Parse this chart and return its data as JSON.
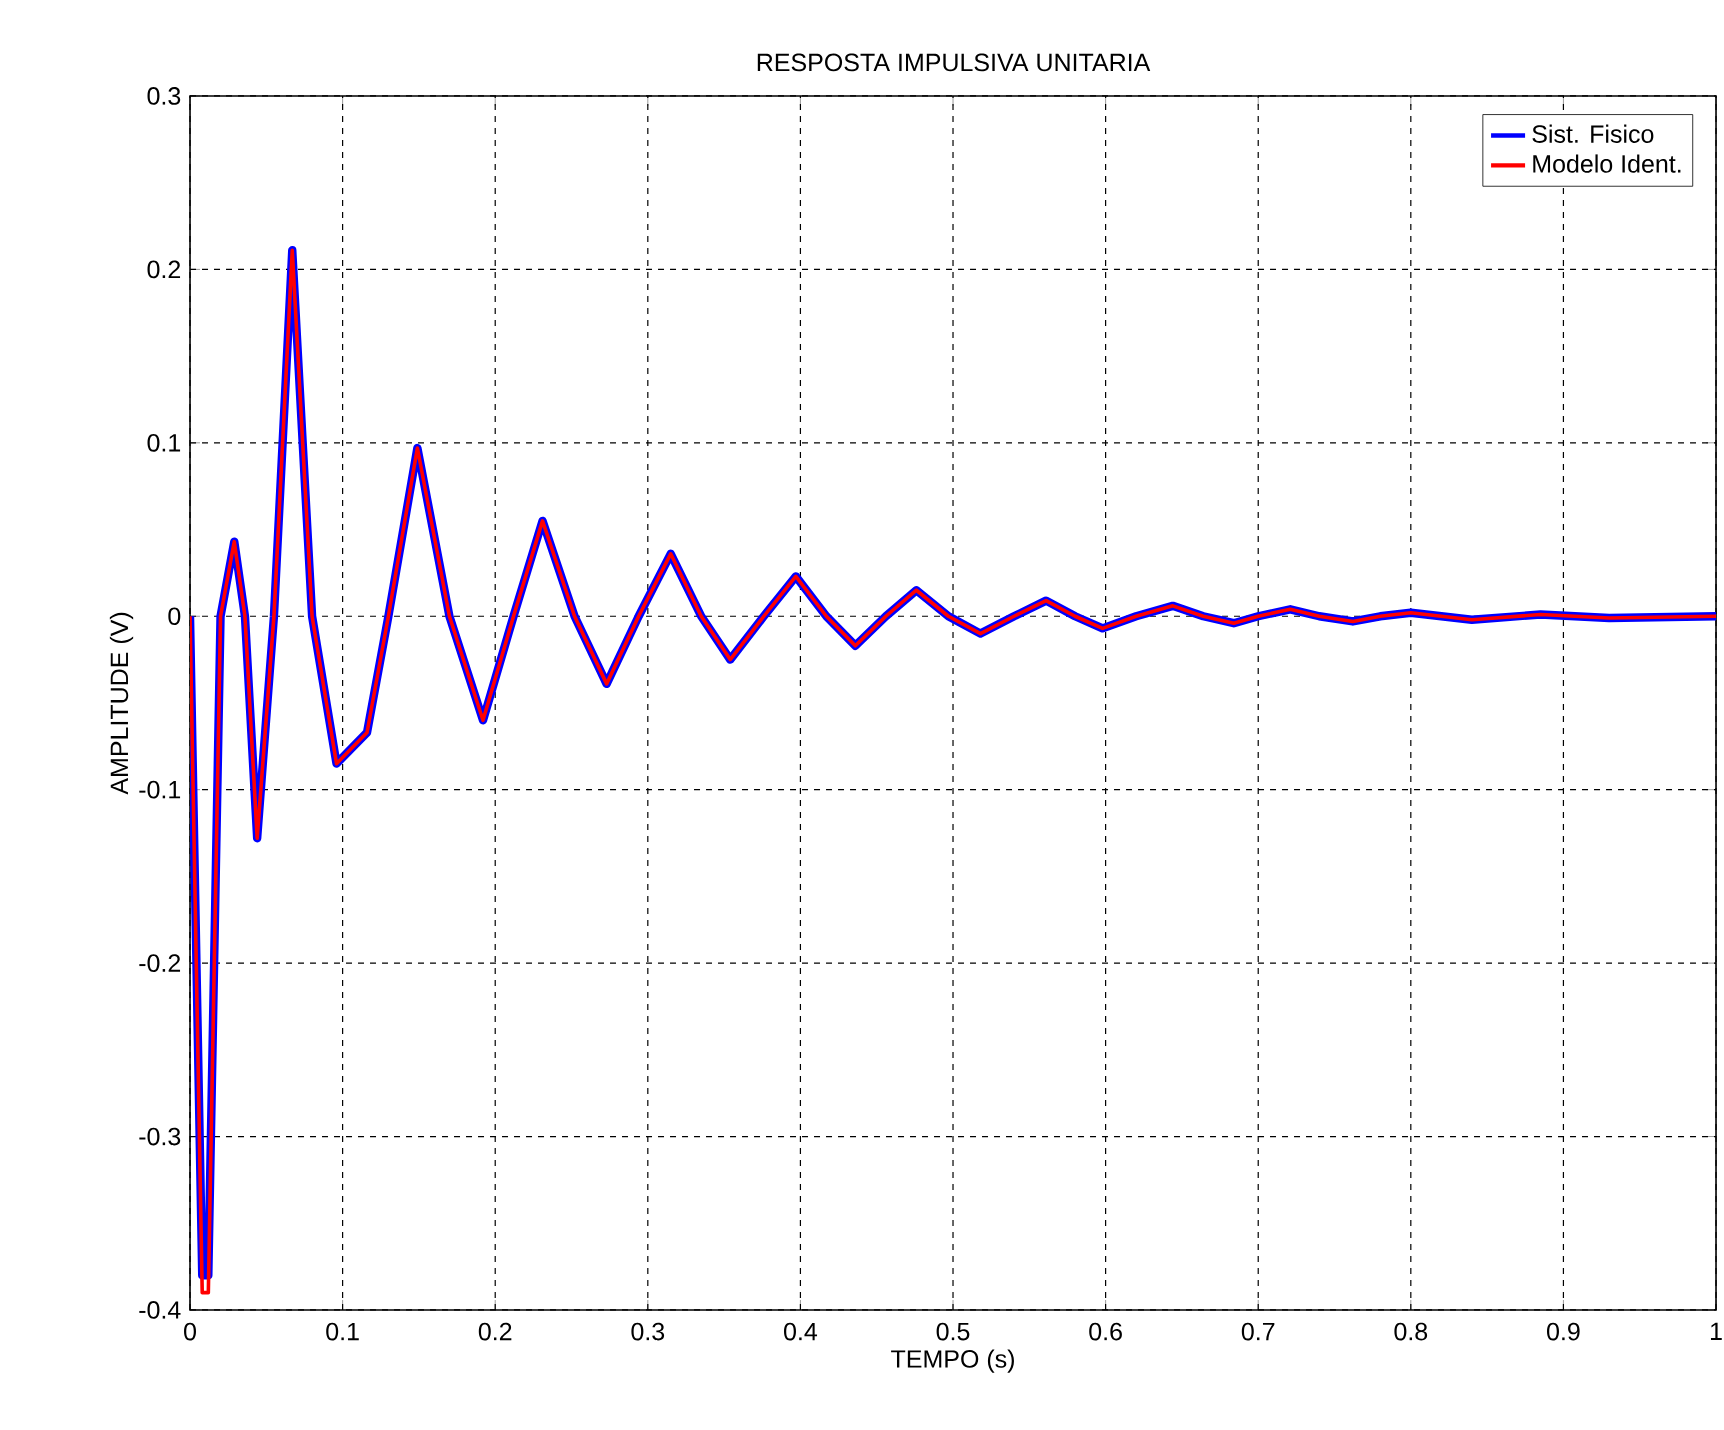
{
  "chart_data": {
    "type": "line",
    "title": "RESPOSTA IMPULSIVA UNITARIA",
    "xlabel": "TEMPO (s)",
    "ylabel": "AMPLITUDE (V)",
    "x": [
      0,
      0.008,
      0.012,
      0.02,
      0.029,
      0.036,
      0.044,
      0.055,
      0.067,
      0.08,
      0.096,
      0.116,
      0.13,
      0.149,
      0.17,
      0.192,
      0.212,
      0.231,
      0.252,
      0.273,
      0.294,
      0.315,
      0.335,
      0.354,
      0.376,
      0.397,
      0.417,
      0.436,
      0.456,
      0.476,
      0.497,
      0.518,
      0.54,
      0.561,
      0.58,
      0.598,
      0.62,
      0.644,
      0.664,
      0.684,
      0.7,
      0.721,
      0.74,
      0.762,
      0.78,
      0.8,
      0.84,
      0.885,
      0.93,
      1.0
    ],
    "series": [
      {
        "name": "Sist. Fisico",
        "color": "#0000ff",
        "values": [
          0,
          -0.38,
          -0.38,
          0,
          0.043,
          0,
          -0.128,
          0,
          0.211,
          0,
          -0.085,
          -0.067,
          0,
          0.097,
          0,
          -0.06,
          0,
          0.055,
          0,
          -0.039,
          0,
          0.036,
          0,
          -0.025,
          0,
          0.023,
          0,
          -0.017,
          0,
          0.015,
          0,
          -0.01,
          0,
          0.009,
          0,
          -0.007,
          0,
          0.006,
          0,
          -0.004,
          0,
          0.004,
          0,
          -0.003,
          0,
          0.002,
          -0.002,
          0.001,
          -0.001,
          0
        ]
      },
      {
        "name": "Modelo Ident.",
        "color": "#ff0000",
        "values": [
          0,
          -0.39,
          -0.39,
          0,
          0.043,
          0,
          -0.128,
          0,
          0.211,
          0,
          -0.085,
          -0.067,
          0,
          0.097,
          0,
          -0.06,
          0,
          0.055,
          0,
          -0.039,
          0,
          0.036,
          0,
          -0.025,
          0,
          0.023,
          0,
          -0.017,
          0,
          0.015,
          0,
          -0.01,
          0,
          0.009,
          0,
          -0.007,
          0,
          0.006,
          0,
          -0.004,
          0,
          0.004,
          0,
          -0.003,
          0,
          0.002,
          -0.002,
          0.001,
          -0.001,
          0
        ]
      }
    ],
    "xlim": [
      0,
      1
    ],
    "ylim": [
      -0.4,
      0.3
    ],
    "xticks": [
      0,
      0.1,
      0.2,
      0.3,
      0.4,
      0.5,
      0.6,
      0.7,
      0.8,
      0.9,
      1
    ],
    "yticks": [
      -0.4,
      -0.3,
      -0.2,
      -0.1,
      0,
      0.1,
      0.2,
      0.3
    ],
    "grid": true,
    "legend": "top right",
    "line_style": "solid",
    "marker": "none"
  }
}
